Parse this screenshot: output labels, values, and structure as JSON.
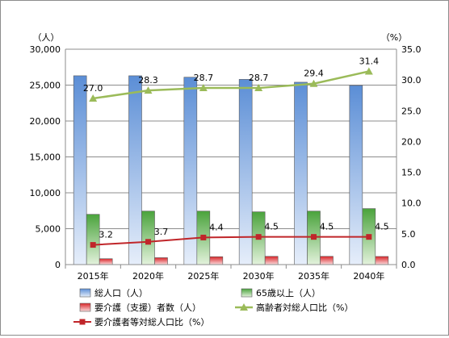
{
  "chart_data": {
    "type": "bar",
    "title": "",
    "categories": [
      "2015年",
      "2020年",
      "2025年",
      "2030年",
      "2035年",
      "2040年"
    ],
    "y_left": {
      "unit": "（人）",
      "min": 0,
      "max": 30000,
      "step": 5000,
      "tick_labels": [
        "0",
        "5,000",
        "10,000",
        "15,000",
        "20,000",
        "25,000",
        "30,000"
      ]
    },
    "y_right": {
      "unit": "（%）",
      "min": 0,
      "max": 35,
      "step": 5,
      "tick_labels": [
        "0.0",
        "5.0",
        "10.0",
        "15.0",
        "20.0",
        "25.0",
        "30.0",
        "35.0"
      ]
    },
    "series": [
      {
        "name": "総人口（人）",
        "kind": "bar",
        "axis": "left",
        "color": "#5b8ed6",
        "values": [
          26300,
          26300,
          26100,
          25800,
          25400,
          24950
        ]
      },
      {
        "name": "65歳以上（人）",
        "kind": "bar",
        "axis": "left",
        "color": "#4aa33c",
        "values": [
          7000,
          7450,
          7450,
          7350,
          7450,
          7800
        ]
      },
      {
        "name": "要介護（支援）者数（人）",
        "kind": "bar",
        "axis": "left",
        "color": "#d9262a",
        "values": [
          820,
          960,
          1100,
          1150,
          1150,
          1130
        ]
      },
      {
        "name": "高齢者対総人口比（%）",
        "kind": "line",
        "axis": "right",
        "color": "#9bbb59",
        "values": [
          27.0,
          28.3,
          28.7,
          28.7,
          29.4,
          31.4
        ],
        "labels": [
          "27.0",
          "28.3",
          "28.7",
          "28.7",
          "29.4",
          "31.4"
        ]
      },
      {
        "name": "要介護者等対総人口比（%）",
        "kind": "line",
        "axis": "right",
        "color": "#c0262a",
        "values": [
          3.2,
          3.7,
          4.4,
          4.5,
          4.5,
          4.5
        ],
        "labels": [
          "3.2",
          "3.7",
          "4.4",
          "4.5",
          "4.5",
          "4.5"
        ]
      }
    ],
    "grid": true,
    "legend_position": "bottom"
  }
}
